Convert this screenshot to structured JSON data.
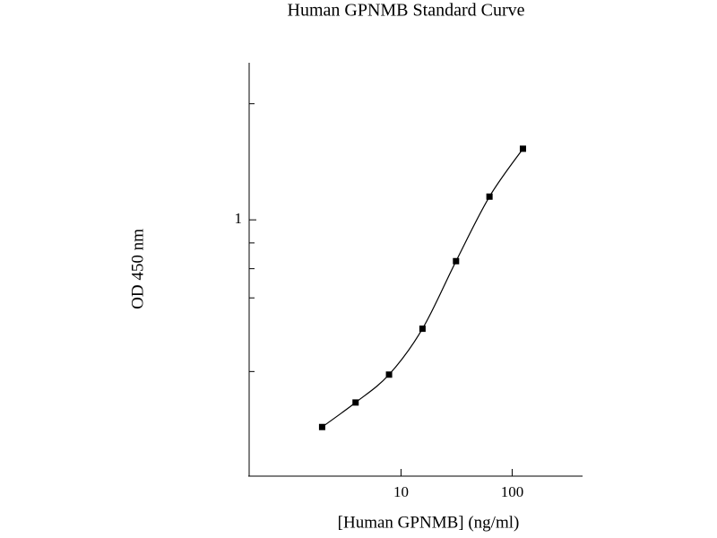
{
  "chart_data": {
    "type": "line",
    "title": "Human GPNMB Standard Curve",
    "x_label": "[Human GPNMB] (ng/ml)",
    "y_label": "OD 450 nm",
    "x": [
      1.95,
      3.9,
      7.8,
      15.6,
      31.25,
      62.5,
      125
    ],
    "series": [
      {
        "values": [
          0.388,
          0.434,
          0.493,
          0.608,
          0.828,
          1.112,
          1.384
        ],
        "color": "#000000"
      }
    ],
    "x_log": true,
    "y_log": true,
    "xlim": [
      0.43,
      430
    ],
    "ylim": [
      0.31,
      2.05
    ],
    "xticks": [
      10,
      100
    ],
    "yticks": [
      1
    ],
    "y_minor_ticks": [
      1.7,
      0.9,
      0.8,
      0.7,
      0.5
    ],
    "smooth": true
  }
}
